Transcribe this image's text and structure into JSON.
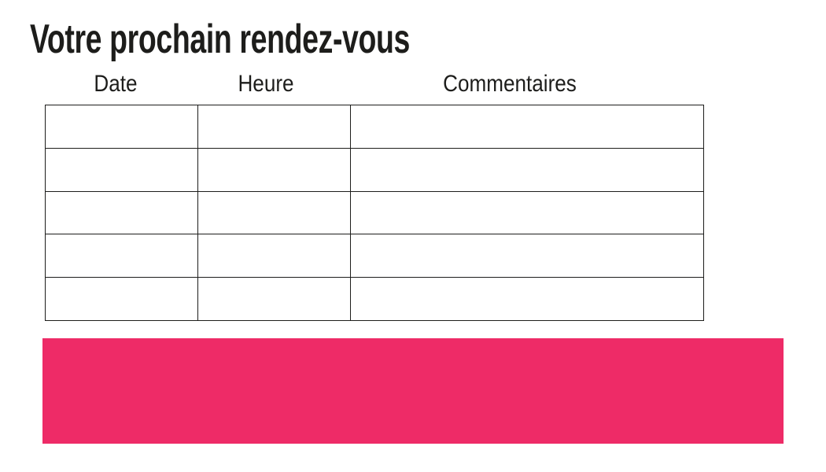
{
  "title": "Votre prochain rendez-vous",
  "table": {
    "headers": [
      "Date",
      "Heure",
      "Commentaires"
    ],
    "rows": [
      [
        "",
        "",
        ""
      ],
      [
        "",
        "",
        ""
      ],
      [
        "",
        "",
        ""
      ],
      [
        "",
        "",
        ""
      ],
      [
        "",
        "",
        ""
      ]
    ]
  },
  "banner": {
    "label": "",
    "color": "#ee2b67"
  },
  "colors": {
    "accent_pink": "#ee2b67",
    "border_black": "#1d1d1b",
    "text_black": "#1d1d1b",
    "background": "#ffffff"
  }
}
